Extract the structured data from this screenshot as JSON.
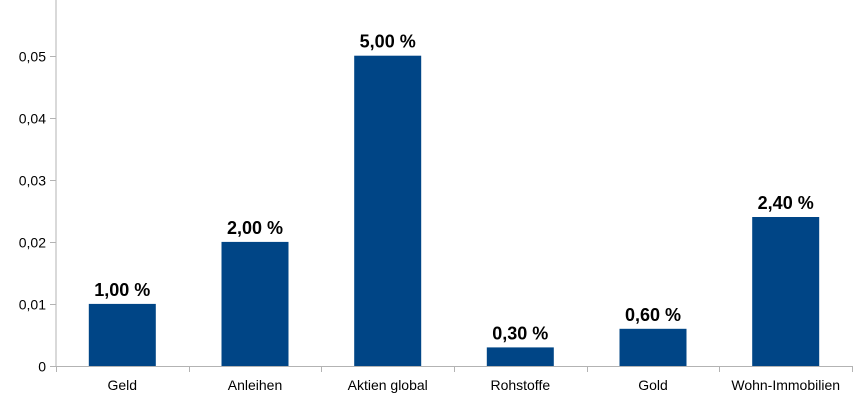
{
  "chart_data": {
    "type": "bar",
    "categories": [
      "Geld",
      "Anleihen",
      "Aktien global",
      "Rohstoffe",
      "Gold",
      "Wohn-Immobilien"
    ],
    "values": [
      0.01,
      0.02,
      0.05,
      0.003,
      0.006,
      0.024
    ],
    "data_labels": [
      "1,00 %",
      "2,00 %",
      "5,00 %",
      "0,30 %",
      "0,60 %",
      "2,40 %"
    ],
    "yticks": [
      0,
      0.01,
      0.02,
      0.03,
      0.04,
      0.05
    ],
    "ytick_labels": [
      "0",
      "0,01",
      "0,02",
      "0,03",
      "0,04",
      "0,05"
    ],
    "ylim": [
      0,
      0.058
    ],
    "title": "",
    "xlabel": "",
    "ylabel": "",
    "grid": false,
    "legend": "none",
    "colors": {
      "bar": "#004586",
      "axis": "#b3b3b3",
      "text": "#000000"
    }
  }
}
